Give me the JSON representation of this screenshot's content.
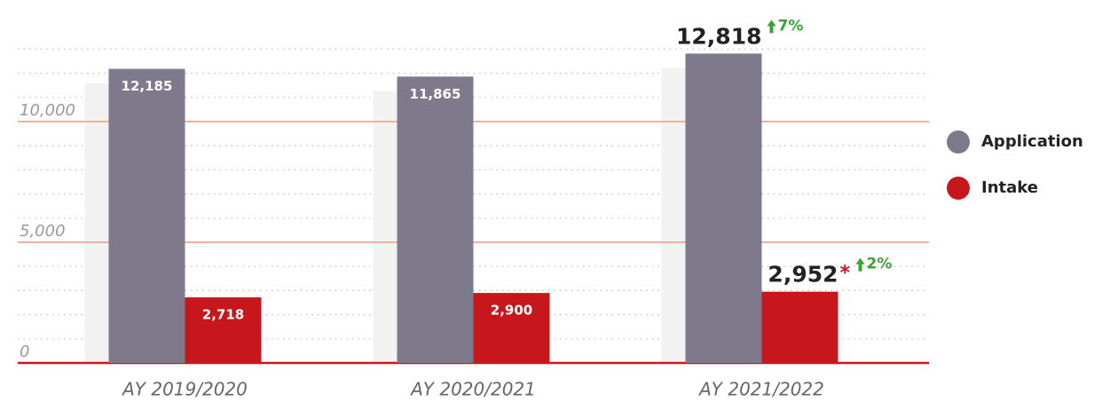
{
  "chart_data": {
    "type": "bar",
    "categories": [
      "AY 2019/2020",
      "AY 2020/2021",
      "AY 2021/2022"
    ],
    "series": [
      {
        "name": "Application",
        "color": "#7e7a8c",
        "values": [
          12185,
          11865,
          12818
        ],
        "value_labels": [
          "12,185",
          "11,865",
          "12,818"
        ]
      },
      {
        "name": "Intake",
        "color": "#c8161d",
        "values": [
          2718,
          2900,
          2952
        ],
        "value_labels": [
          "2,718",
          "2,900",
          "2,952"
        ]
      }
    ],
    "ylim": [
      0,
      13200
    ],
    "yticks": [
      0,
      {
        "value": 5000,
        "label": "5,000"
      },
      {
        "value": 10000,
        "label": "10,000"
      }
    ],
    "minor_yticks": [
      1000,
      2000,
      3000,
      4000,
      6000,
      7000,
      8000,
      9000,
      11000,
      12000,
      13000
    ],
    "grid": true,
    "legend": "right",
    "annotations": [
      {
        "series": 0,
        "index": 2,
        "text": "7%",
        "color": "#3aa335"
      },
      {
        "series": 1,
        "index": 2,
        "text": "2%",
        "color": "#3aa335",
        "marker": "*",
        "marker_color": "#c8161d"
      }
    ]
  }
}
